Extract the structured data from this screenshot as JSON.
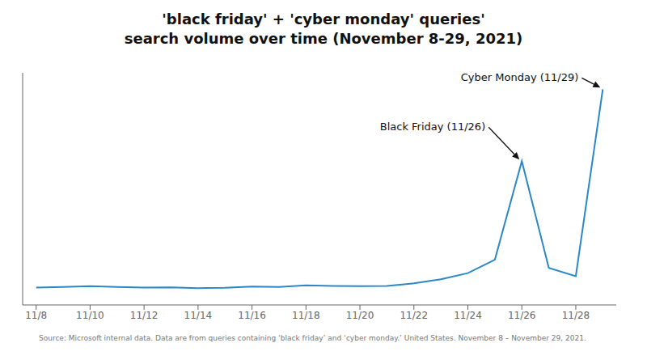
{
  "chart_data": {
    "type": "line",
    "title": "'black friday' + 'cyber monday' queries'",
    "subtitle": "search volume over time (November 8-29, 2021)",
    "source": "Source: Microsoft internal data. Data are from queries containing ‘black friday’ and ‘cyber monday.’ United States. November 8 – November 29, 2021.",
    "x": [
      8,
      9,
      10,
      11,
      12,
      13,
      14,
      15,
      16,
      17,
      18,
      19,
      20,
      21,
      22,
      23,
      24,
      25,
      26,
      27,
      28,
      29
    ],
    "values": [
      3.5,
      3.8,
      4.2,
      3.8,
      3.5,
      3.6,
      3.2,
      3.4,
      4.0,
      3.8,
      4.5,
      4.3,
      4.2,
      4.3,
      5.5,
      7.5,
      10.5,
      17.0,
      65.0,
      13.0,
      9.0,
      100.0
    ],
    "color": "#2b88c8",
    "xlim": [
      7.5,
      29.5
    ],
    "xticks": [
      {
        "value": 8,
        "label": "11/8"
      },
      {
        "value": 10,
        "label": "11/10"
      },
      {
        "value": 12,
        "label": "11/12"
      },
      {
        "value": 14,
        "label": "11/14"
      },
      {
        "value": 16,
        "label": "11/16"
      },
      {
        "value": 18,
        "label": "11/18"
      },
      {
        "value": 20,
        "label": "11/20"
      },
      {
        "value": 22,
        "label": "11/22"
      },
      {
        "value": 24,
        "label": "11/24"
      },
      {
        "value": 26,
        "label": "11/26"
      },
      {
        "value": 28,
        "label": "11/28"
      }
    ],
    "ylim": [
      -5,
      108
    ],
    "tick_labels": "x",
    "grid": false,
    "annotations": [
      {
        "text": "Black Friday (11/26)",
        "x": 26,
        "y": 65.0
      },
      {
        "text": "Cyber Monday (11/29)",
        "x": 29,
        "y": 100.0
      }
    ]
  }
}
